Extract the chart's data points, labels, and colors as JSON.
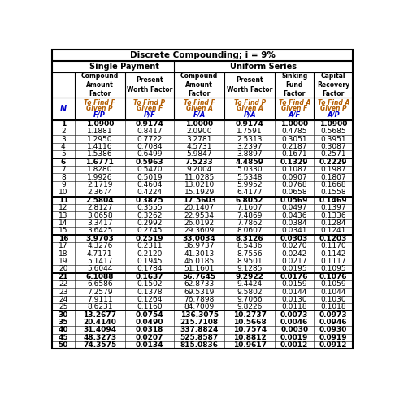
{
  "title": "Discrete Compounding; i = 9%",
  "section_single": "Single Payment",
  "section_uniform": "Uniform Series",
  "N": [
    1,
    2,
    3,
    4,
    5,
    6,
    7,
    8,
    9,
    10,
    11,
    12,
    13,
    14,
    15,
    16,
    17,
    18,
    19,
    20,
    21,
    22,
    23,
    24,
    25,
    30,
    35,
    40,
    45,
    50
  ],
  "FP": [
    1.09,
    1.1881,
    1.295,
    1.4116,
    1.5386,
    1.6771,
    1.828,
    1.9926,
    2.1719,
    2.3674,
    2.5804,
    2.8127,
    3.0658,
    3.3417,
    3.6425,
    3.9703,
    4.3276,
    4.7171,
    5.1417,
    5.6044,
    6.1088,
    6.6586,
    7.2579,
    7.9111,
    8.6231,
    13.2677,
    20.414,
    31.4094,
    48.3273,
    74.3575
  ],
  "PF": [
    0.9174,
    0.8417,
    0.7722,
    0.7084,
    0.6499,
    0.5963,
    0.547,
    0.5019,
    0.4604,
    0.4224,
    0.3875,
    0.3555,
    0.3262,
    0.2992,
    0.2745,
    0.2519,
    0.2311,
    0.212,
    0.1945,
    0.1784,
    0.1637,
    0.1502,
    0.1378,
    0.1264,
    0.116,
    0.0754,
    0.049,
    0.0318,
    0.0207,
    0.0134
  ],
  "FA": [
    1.0,
    2.09,
    3.2781,
    4.5731,
    5.9847,
    7.5233,
    9.2004,
    11.0285,
    13.021,
    15.1929,
    17.5603,
    20.1407,
    22.9534,
    26.0192,
    29.3609,
    33.0034,
    36.9737,
    41.3013,
    46.0185,
    51.1601,
    56.7645,
    62.8733,
    69.5319,
    76.7898,
    84.7009,
    136.3075,
    215.7108,
    337.8824,
    525.8587,
    815.0836
  ],
  "PA": [
    0.9174,
    1.7591,
    2.5313,
    3.2397,
    3.8897,
    4.4859,
    5.033,
    5.5348,
    5.9952,
    6.4177,
    6.8052,
    7.1607,
    7.4869,
    7.7862,
    8.0607,
    8.3126,
    8.5436,
    8.7556,
    8.9501,
    9.1285,
    9.2922,
    9.4424,
    9.5802,
    9.7066,
    9.8226,
    10.2737,
    10.5668,
    10.7574,
    10.8812,
    10.9617
  ],
  "AF": [
    1.0,
    0.4785,
    0.3051,
    0.2187,
    0.1671,
    0.1329,
    0.1087,
    0.0907,
    0.0768,
    0.0658,
    0.0569,
    0.0497,
    0.0436,
    0.0384,
    0.0341,
    0.0303,
    0.027,
    0.0242,
    0.0217,
    0.0195,
    0.0176,
    0.0159,
    0.0144,
    0.013,
    0.0118,
    0.0073,
    0.0046,
    0.003,
    0.0019,
    0.0012
  ],
  "AP": [
    1.09,
    0.5685,
    0.3951,
    0.3087,
    0.2571,
    0.2229,
    0.1987,
    0.1807,
    0.1668,
    0.1558,
    0.1469,
    0.1397,
    0.1336,
    0.1284,
    0.1241,
    0.1203,
    0.117,
    0.1142,
    0.1117,
    0.1095,
    0.1076,
    0.1059,
    0.1044,
    0.103,
    0.1018,
    0.0973,
    0.0946,
    0.093,
    0.0919,
    0.0912
  ],
  "group_end_n": [
    5,
    10,
    15,
    20,
    25
  ],
  "bold_rows_n": [
    1,
    6,
    11,
    16,
    21,
    30,
    35,
    40,
    45,
    50
  ],
  "bg_color": "#ffffff",
  "line_color": "#000000",
  "data_color": "#000000",
  "orange_color": "#b35c00",
  "blue_color": "#0000cc"
}
